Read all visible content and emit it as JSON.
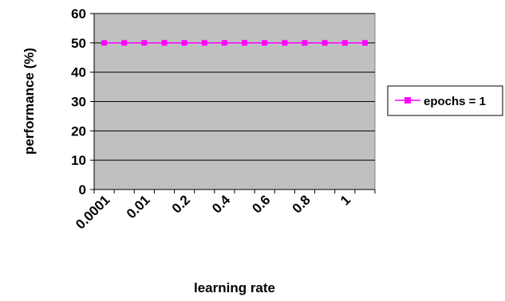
{
  "chart_data": {
    "type": "line",
    "title": "",
    "xlabel": "learning rate",
    "ylabel": "performance (%)",
    "ylim": [
      0,
      60
    ],
    "yticks": [
      0,
      10,
      20,
      30,
      40,
      50,
      60
    ],
    "x_tick_labels": [
      "0.0001",
      "0.01",
      "0.2",
      "0.4",
      "0.6",
      "0.8",
      "1"
    ],
    "x_points": 14,
    "grid": true,
    "legend_position": "right",
    "series": [
      {
        "name": "epochs = 1",
        "color": "#ff00ff",
        "marker": "square",
        "values": [
          50,
          50,
          50,
          50,
          50,
          50,
          50,
          50,
          50,
          50,
          50,
          50,
          50,
          50
        ]
      }
    ],
    "plot_background": "#c0c0c0"
  }
}
